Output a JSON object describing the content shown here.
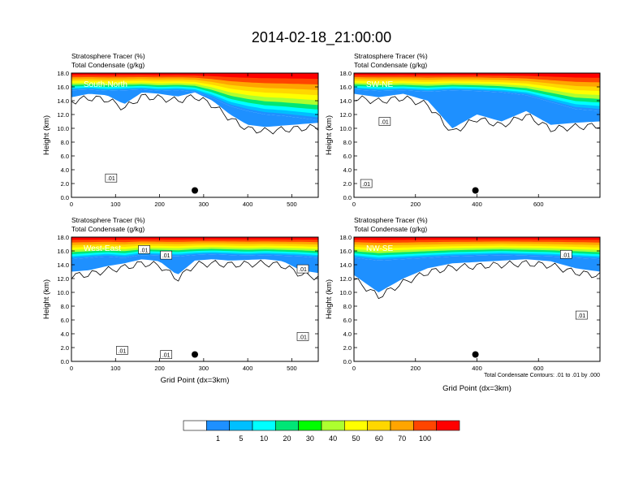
{
  "page_title": "2014-02-18_21:00:00",
  "chart_data": [
    {
      "type": "heatmap",
      "label": "South-North",
      "title_lines": [
        "Stratosphere Tracer   (%)",
        "Total Condensate   (g/kg)"
      ],
      "ylabel": "Height (km)",
      "xlabel": "",
      "xlim": [
        0,
        560
      ],
      "ylim": [
        0,
        18
      ],
      "xticks": [
        0,
        100,
        200,
        300,
        400,
        500
      ],
      "yticks": [
        0,
        2,
        4,
        6,
        8,
        10,
        12,
        14,
        16,
        18
      ],
      "marker": {
        "x": 280,
        "y": 1.0
      },
      "contour_labels": [
        {
          "text": ".01",
          "x": 90,
          "y": 2.8
        }
      ],
      "tracer_profile": {
        "x": [
          0,
          40,
          80,
          120,
          160,
          200,
          240,
          280,
          320,
          360,
          400,
          440,
          480,
          520,
          560
        ],
        "tracer_bottom_km": [
          15.5,
          15.6,
          15.4,
          15.5,
          15.6,
          15.4,
          15.5,
          15.3,
          14.4,
          13.2,
          12.5,
          12.0,
          11.8,
          11.5,
          11.2
        ],
        "ice_bottom_km": [
          14.5,
          15.0,
          14.8,
          13.5,
          15.2,
          15.0,
          14.6,
          15.2,
          14.0,
          12.0,
          10.5,
          10.2,
          10.4,
          10.6,
          10.8
        ]
      }
    },
    {
      "type": "heatmap",
      "label": "SW-NE",
      "title_lines": [
        "Stratosphere Tracer   (%)",
        "Total Condensate   (g/kg)"
      ],
      "ylabel": "Height (km)",
      "xlabel": "",
      "xlim": [
        0,
        800
      ],
      "ylim": [
        0,
        18
      ],
      "xticks": [
        0,
        200,
        400,
        600
      ],
      "yticks": [
        0,
        2,
        4,
        6,
        8,
        10,
        12,
        14,
        16,
        18
      ],
      "marker": {
        "x": 395,
        "y": 1.0
      },
      "contour_labels": [
        {
          "text": ".01",
          "x": 100,
          "y": 11.0
        },
        {
          "text": ".01",
          "x": 40,
          "y": 2.0
        }
      ],
      "tracer_profile": {
        "x": [
          0,
          80,
          160,
          240,
          320,
          400,
          480,
          560,
          640,
          720,
          800
        ],
        "tracer_bottom_km": [
          15.6,
          15.4,
          15.5,
          15.3,
          15.5,
          15.4,
          15.2,
          14.8,
          13.8,
          12.8,
          12.5
        ],
        "ice_bottom_km": [
          15.0,
          14.5,
          15.0,
          14.0,
          10.0,
          12.0,
          11.0,
          12.5,
          10.5,
          10.8,
          11.0
        ]
      }
    },
    {
      "type": "heatmap",
      "label": "West-East",
      "title_lines": [
        "Stratosphere Tracer   (%)",
        "Total Condensate   (g/kg)"
      ],
      "ylabel": "Height (km)",
      "xlabel": "Grid Point (dx=3km)",
      "xlim": [
        0,
        560
      ],
      "ylim": [
        0,
        18
      ],
      "xticks": [
        0,
        100,
        200,
        300,
        400,
        500
      ],
      "yticks": [
        0,
        2,
        4,
        6,
        8,
        10,
        12,
        14,
        16,
        18
      ],
      "marker": {
        "x": 280,
        "y": 1.0
      },
      "contour_labels": [
        {
          "text": ".01",
          "x": 165,
          "y": 16.2
        },
        {
          "text": ".01",
          "x": 215,
          "y": 15.4
        },
        {
          "text": ".01",
          "x": 115,
          "y": 1.6
        },
        {
          "text": ".01",
          "x": 215,
          "y": 1.0
        },
        {
          "text": ".01",
          "x": 525,
          "y": 13.4
        },
        {
          "text": ".01",
          "x": 525,
          "y": 3.6
        }
      ],
      "tracer_profile": {
        "x": [
          0,
          40,
          80,
          120,
          160,
          200,
          240,
          280,
          320,
          360,
          400,
          440,
          480,
          520,
          560
        ],
        "tracer_bottom_km": [
          14.8,
          15.0,
          15.2,
          15.0,
          15.4,
          15.3,
          15.2,
          15.4,
          15.5,
          15.4,
          15.3,
          15.4,
          15.3,
          15.2,
          15.0
        ],
        "ice_bottom_km": [
          13.0,
          13.2,
          13.8,
          14.2,
          14.8,
          14.5,
          12.5,
          14.6,
          14.8,
          14.6,
          14.7,
          14.8,
          14.5,
          13.2,
          12.8
        ]
      }
    },
    {
      "type": "heatmap",
      "label": "NW-SE",
      "title_lines": [
        "Stratosphere Tracer   (%)",
        "Total Condensate   (g/kg)"
      ],
      "ylabel": "Height (km)",
      "xlabel": "Grid Point (dx=3km)",
      "xlim": [
        0,
        800
      ],
      "ylim": [
        0,
        18
      ],
      "xticks": [
        0,
        200,
        400,
        600
      ],
      "yticks": [
        0,
        2,
        4,
        6,
        8,
        10,
        12,
        14,
        16,
        18
      ],
      "marker": {
        "x": 395,
        "y": 1.0
      },
      "contour_labels": [
        {
          "text": ".01",
          "x": 690,
          "y": 15.5
        },
        {
          "text": ".01",
          "x": 740,
          "y": 6.7
        }
      ],
      "footnote": "Total Condensate Contours: .01 to .01 by .000",
      "tracer_profile": {
        "x": [
          0,
          80,
          160,
          240,
          320,
          400,
          480,
          560,
          640,
          720,
          800
        ],
        "tracer_bottom_km": [
          15.0,
          14.6,
          14.8,
          15.0,
          15.2,
          15.3,
          15.4,
          15.3,
          15.2,
          15.0,
          14.8
        ],
        "ice_bottom_km": [
          12.5,
          10.0,
          12.0,
          13.5,
          14.2,
          14.4,
          14.6,
          14.8,
          14.5,
          13.5,
          13.0
        ]
      }
    }
  ],
  "colorbar": {
    "levels": [
      "1",
      "5",
      "10",
      "20",
      "30",
      "40",
      "50",
      "60",
      "70",
      "100"
    ],
    "colors": [
      "#ffffff",
      "#1e90ff",
      "#00bfff",
      "#00ffff",
      "#00e676",
      "#00ff00",
      "#adff2f",
      "#ffff00",
      "#ffd700",
      "#ffa500",
      "#ff4500",
      "#ff0000"
    ]
  }
}
